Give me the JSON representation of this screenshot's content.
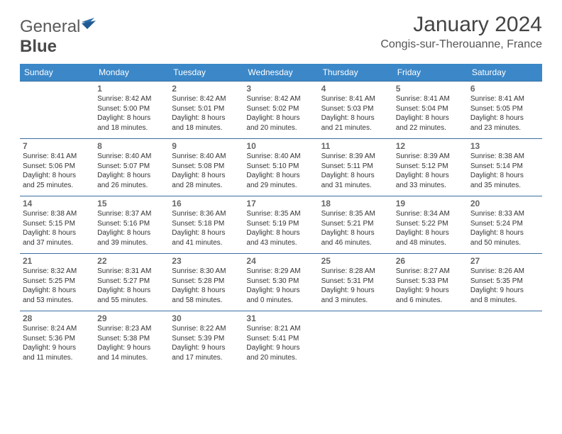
{
  "brand": {
    "text1": "General",
    "text2": "Blue"
  },
  "title": "January 2024",
  "location": "Congis-sur-Therouanne, France",
  "colors": {
    "header_bg": "#3b87c8",
    "header_text": "#ffffff",
    "row_border": "#3b6fa0",
    "daynum_color": "#666666",
    "text_color": "#333333",
    "title_color": "#444444",
    "logo_gray": "#5a5a5a",
    "logo_blue": "#2f6fa8"
  },
  "weekdays": [
    "Sunday",
    "Monday",
    "Tuesday",
    "Wednesday",
    "Thursday",
    "Friday",
    "Saturday"
  ],
  "weeks": [
    [
      null,
      {
        "n": "1",
        "sr": "8:42 AM",
        "ss": "5:00 PM",
        "dl": "8 hours and 18 minutes."
      },
      {
        "n": "2",
        "sr": "8:42 AM",
        "ss": "5:01 PM",
        "dl": "8 hours and 18 minutes."
      },
      {
        "n": "3",
        "sr": "8:42 AM",
        "ss": "5:02 PM",
        "dl": "8 hours and 20 minutes."
      },
      {
        "n": "4",
        "sr": "8:41 AM",
        "ss": "5:03 PM",
        "dl": "8 hours and 21 minutes."
      },
      {
        "n": "5",
        "sr": "8:41 AM",
        "ss": "5:04 PM",
        "dl": "8 hours and 22 minutes."
      },
      {
        "n": "6",
        "sr": "8:41 AM",
        "ss": "5:05 PM",
        "dl": "8 hours and 23 minutes."
      }
    ],
    [
      {
        "n": "7",
        "sr": "8:41 AM",
        "ss": "5:06 PM",
        "dl": "8 hours and 25 minutes."
      },
      {
        "n": "8",
        "sr": "8:40 AM",
        "ss": "5:07 PM",
        "dl": "8 hours and 26 minutes."
      },
      {
        "n": "9",
        "sr": "8:40 AM",
        "ss": "5:08 PM",
        "dl": "8 hours and 28 minutes."
      },
      {
        "n": "10",
        "sr": "8:40 AM",
        "ss": "5:10 PM",
        "dl": "8 hours and 29 minutes."
      },
      {
        "n": "11",
        "sr": "8:39 AM",
        "ss": "5:11 PM",
        "dl": "8 hours and 31 minutes."
      },
      {
        "n": "12",
        "sr": "8:39 AM",
        "ss": "5:12 PM",
        "dl": "8 hours and 33 minutes."
      },
      {
        "n": "13",
        "sr": "8:38 AM",
        "ss": "5:14 PM",
        "dl": "8 hours and 35 minutes."
      }
    ],
    [
      {
        "n": "14",
        "sr": "8:38 AM",
        "ss": "5:15 PM",
        "dl": "8 hours and 37 minutes."
      },
      {
        "n": "15",
        "sr": "8:37 AM",
        "ss": "5:16 PM",
        "dl": "8 hours and 39 minutes."
      },
      {
        "n": "16",
        "sr": "8:36 AM",
        "ss": "5:18 PM",
        "dl": "8 hours and 41 minutes."
      },
      {
        "n": "17",
        "sr": "8:35 AM",
        "ss": "5:19 PM",
        "dl": "8 hours and 43 minutes."
      },
      {
        "n": "18",
        "sr": "8:35 AM",
        "ss": "5:21 PM",
        "dl": "8 hours and 46 minutes."
      },
      {
        "n": "19",
        "sr": "8:34 AM",
        "ss": "5:22 PM",
        "dl": "8 hours and 48 minutes."
      },
      {
        "n": "20",
        "sr": "8:33 AM",
        "ss": "5:24 PM",
        "dl": "8 hours and 50 minutes."
      }
    ],
    [
      {
        "n": "21",
        "sr": "8:32 AM",
        "ss": "5:25 PM",
        "dl": "8 hours and 53 minutes."
      },
      {
        "n": "22",
        "sr": "8:31 AM",
        "ss": "5:27 PM",
        "dl": "8 hours and 55 minutes."
      },
      {
        "n": "23",
        "sr": "8:30 AM",
        "ss": "5:28 PM",
        "dl": "8 hours and 58 minutes."
      },
      {
        "n": "24",
        "sr": "8:29 AM",
        "ss": "5:30 PM",
        "dl": "9 hours and 0 minutes."
      },
      {
        "n": "25",
        "sr": "8:28 AM",
        "ss": "5:31 PM",
        "dl": "9 hours and 3 minutes."
      },
      {
        "n": "26",
        "sr": "8:27 AM",
        "ss": "5:33 PM",
        "dl": "9 hours and 6 minutes."
      },
      {
        "n": "27",
        "sr": "8:26 AM",
        "ss": "5:35 PM",
        "dl": "9 hours and 8 minutes."
      }
    ],
    [
      {
        "n": "28",
        "sr": "8:24 AM",
        "ss": "5:36 PM",
        "dl": "9 hours and 11 minutes."
      },
      {
        "n": "29",
        "sr": "8:23 AM",
        "ss": "5:38 PM",
        "dl": "9 hours and 14 minutes."
      },
      {
        "n": "30",
        "sr": "8:22 AM",
        "ss": "5:39 PM",
        "dl": "9 hours and 17 minutes."
      },
      {
        "n": "31",
        "sr": "8:21 AM",
        "ss": "5:41 PM",
        "dl": "9 hours and 20 minutes."
      },
      null,
      null,
      null
    ]
  ],
  "labels": {
    "sunrise": "Sunrise:",
    "sunset": "Sunset:",
    "daylight": "Daylight:"
  }
}
